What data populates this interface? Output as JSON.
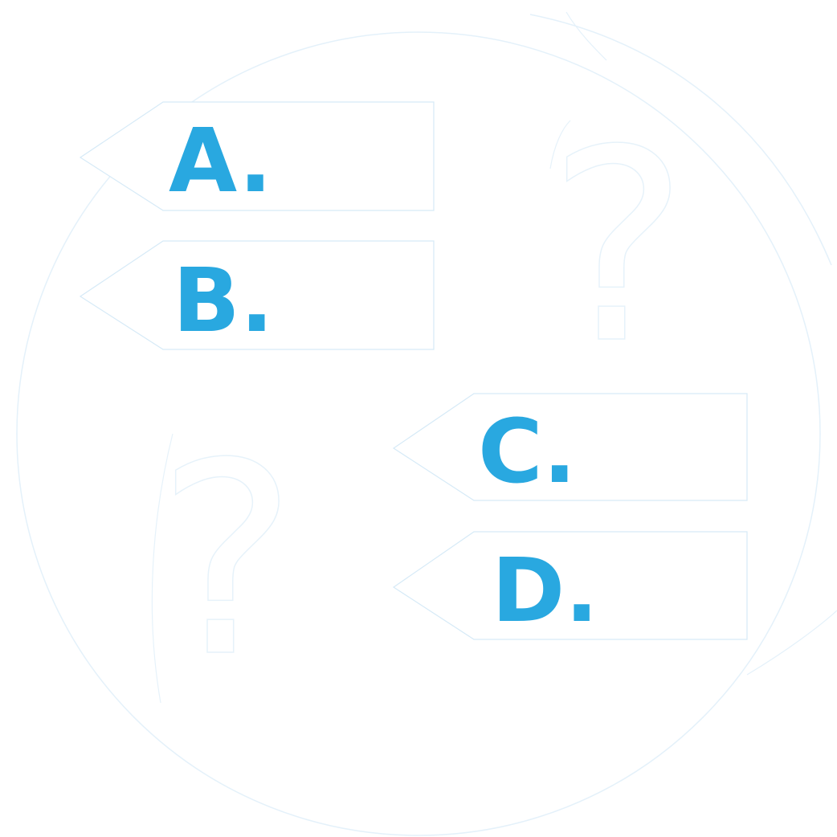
{
  "options": [
    {
      "label": "A."
    },
    {
      "label": "B."
    },
    {
      "label": "C."
    },
    {
      "label": "D."
    }
  ],
  "decorations": {
    "question_mark": "?",
    "icon": "quiz-question-icon"
  },
  "colors": {
    "label": "#29a8e0",
    "outline": "#d6eaf7",
    "background": "#ffffff"
  }
}
